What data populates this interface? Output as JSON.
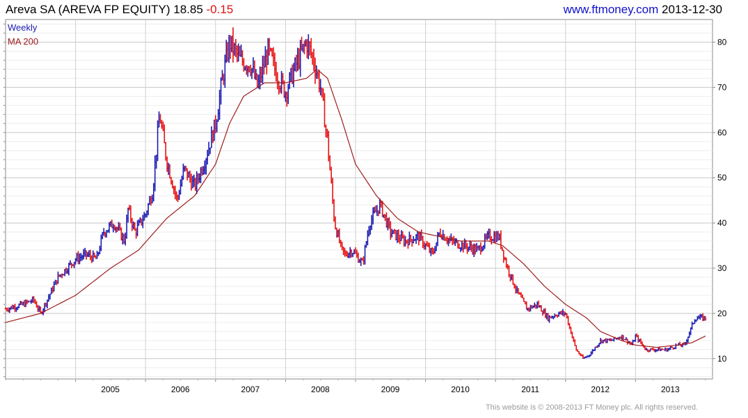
{
  "header": {
    "name": "Areva SA (AREVA FP EQUITY)",
    "last": "18.85",
    "change": "-0.15",
    "site": "www.ftmoney.com",
    "date": "2013-12-30"
  },
  "footer": {
    "text": "This website is © 2008-2013 FT Money plc. All rights reserved."
  },
  "colors": {
    "up": "#1a1ab4",
    "down": "#e81010",
    "ma": "#a01c1c",
    "grid": "#cfcfcf",
    "frame": "#888888"
  },
  "chart_data": {
    "type": "line",
    "title": "Areva SA (AREVA FP EQUITY)",
    "subtitle": "",
    "xlabel": "",
    "ylabel": "",
    "x_ticks": [
      "2005",
      "2006",
      "2007",
      "2008",
      "2009",
      "2010",
      "2011",
      "2012",
      "2013"
    ],
    "y_ticks": [
      10,
      20,
      30,
      40,
      50,
      60,
      70,
      80
    ],
    "xlim": [
      2004.0,
      2014.1
    ],
    "ylim": [
      5.5,
      85
    ],
    "grid": true,
    "legend_position": "top-left",
    "series": [
      {
        "name": "Weekly",
        "kind": "price",
        "x": [
          2004.0,
          2004.25,
          2004.4,
          2004.5,
          2004.75,
          2005.0,
          2005.15,
          2005.3,
          2005.4,
          2005.55,
          2005.7,
          2005.75,
          2005.85,
          2006.0,
          2006.1,
          2006.2,
          2006.3,
          2006.45,
          2006.55,
          2006.7,
          2006.85,
          2007.0,
          2007.1,
          2007.2,
          2007.35,
          2007.5,
          2007.6,
          2007.75,
          2007.9,
          2008.0,
          2008.15,
          2008.3,
          2008.4,
          2008.5,
          2008.6,
          2008.7,
          2008.8,
          2008.85,
          2008.95,
          2009.1,
          2009.2,
          2009.35,
          2009.5,
          2009.7,
          2009.9,
          2010.0,
          2010.1,
          2010.2,
          2010.35,
          2010.55,
          2010.75,
          2010.9,
          2011.05,
          2011.15,
          2011.3,
          2011.45,
          2011.6,
          2011.75,
          2011.9,
          2012.0,
          2012.15,
          2012.25,
          2012.35,
          2012.5,
          2012.65,
          2012.8,
          2012.95,
          2013.0,
          2013.15,
          2013.3,
          2013.45,
          2013.6,
          2013.7,
          2013.85,
          2014.0
        ],
        "y": [
          21,
          22,
          23,
          20,
          28,
          32,
          33,
          32,
          38,
          40,
          36,
          43,
          38,
          42,
          47,
          64,
          54,
          45,
          52,
          48,
          54,
          62,
          72,
          80,
          76,
          75,
          70,
          78,
          72,
          69,
          75,
          80,
          76,
          70,
          58,
          40,
          34,
          33,
          34,
          31,
          40,
          44,
          38,
          36,
          37,
          35,
          33,
          38,
          36,
          35,
          34,
          37,
          37,
          31,
          25,
          21,
          22,
          19,
          20,
          20,
          12,
          10,
          11,
          14,
          14,
          15,
          13,
          15,
          12,
          12,
          12,
          13,
          13,
          19,
          19
        ]
      },
      {
        "name": "MA 200",
        "kind": "ma",
        "x": [
          2004.0,
          2004.5,
          2005.0,
          2005.5,
          2005.9,
          2006.3,
          2006.7,
          2007.0,
          2007.2,
          2007.4,
          2007.7,
          2008.0,
          2008.3,
          2008.45,
          2008.6,
          2008.8,
          2009.0,
          2009.3,
          2009.6,
          2009.9,
          2010.2,
          2010.5,
          2010.9,
          2011.1,
          2011.4,
          2011.7,
          2012.0,
          2012.3,
          2012.5,
          2012.8,
          2013.0,
          2013.3,
          2013.6,
          2013.8,
          2014.0
        ],
        "y": [
          18,
          20,
          24,
          30,
          34,
          41,
          46,
          53,
          62,
          68,
          71,
          71,
          72,
          74,
          72,
          63,
          53,
          46,
          41,
          38,
          37,
          36,
          36,
          35,
          31,
          26,
          22,
          19,
          16,
          14,
          13,
          12.5,
          13,
          13.5,
          15
        ]
      }
    ]
  }
}
